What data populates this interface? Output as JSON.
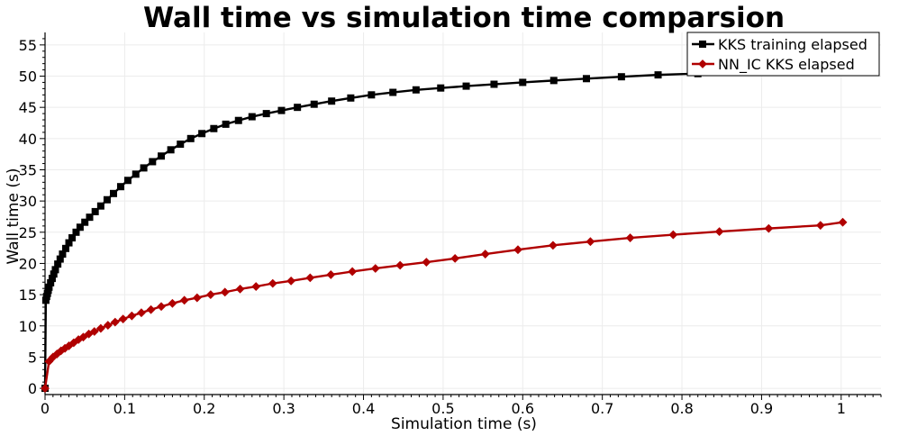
{
  "chart_data": {
    "type": "line",
    "title": "Wall time vs simulation time comparsion",
    "xlabel": "Simulation time (s)",
    "ylabel": "Wall time (s)",
    "xlim": [
      0,
      1.05
    ],
    "ylim": [
      -1,
      57
    ],
    "grid": true,
    "legend_position": "top-right",
    "x_ticks": [
      0,
      0.1,
      0.2,
      0.3,
      0.4,
      0.5,
      0.6,
      0.7,
      0.8,
      0.9,
      1
    ],
    "x_tick_labels": [
      "0",
      "0.1",
      "0.2",
      "0.3",
      "0.4",
      "0.5",
      "0.6",
      "0.7",
      "0.8",
      "0.9",
      "1"
    ],
    "y_ticks": [
      0,
      5,
      10,
      15,
      20,
      25,
      30,
      35,
      40,
      45,
      50,
      55
    ],
    "y_tick_labels": [
      "0",
      "5",
      "10",
      "15",
      "20",
      "25",
      "30",
      "35",
      "40",
      "45",
      "50",
      "55"
    ],
    "series": [
      {
        "name": "KKS training elapsed",
        "color": "#000000",
        "marker": "square",
        "x": [
          0,
          0.001,
          0.002,
          0.003,
          0.004,
          0.005,
          0.007,
          0.009,
          0.011,
          0.013,
          0.016,
          0.019,
          0.022,
          0.026,
          0.03,
          0.034,
          0.039,
          0.044,
          0.05,
          0.056,
          0.063,
          0.07,
          0.078,
          0.086,
          0.095,
          0.104,
          0.114,
          0.124,
          0.135,
          0.146,
          0.158,
          0.17,
          0.183,
          0.197,
          0.212,
          0.227,
          0.243,
          0.26,
          0.278,
          0.297,
          0.317,
          0.338,
          0.36,
          0.384,
          0.41,
          0.437,
          0.466,
          0.497,
          0.529,
          0.564,
          0.6,
          0.639,
          0.68,
          0.724,
          0.77,
          0.82,
          0.872,
          0.928,
          0.987
        ],
        "y": [
          0,
          14.1,
          14.7,
          15.2,
          15.7,
          16.2,
          16.9,
          17.6,
          18.3,
          19.0,
          19.9,
          20.7,
          21.5,
          22.4,
          23.3,
          24.1,
          25.0,
          25.8,
          26.6,
          27.4,
          28.3,
          29.2,
          30.2,
          31.2,
          32.3,
          33.3,
          34.3,
          35.3,
          36.3,
          37.2,
          38.2,
          39.1,
          40.0,
          40.8,
          41.6,
          42.3,
          42.9,
          43.5,
          44.0,
          44.5,
          45.0,
          45.5,
          46.0,
          46.5,
          47.0,
          47.4,
          47.8,
          48.1,
          48.4,
          48.7,
          49.0,
          49.3,
          49.6,
          49.9,
          50.2,
          50.4,
          50.6,
          50.8,
          51.0
        ]
      },
      {
        "name": "NN_IC KKS elapsed",
        "color": "#b00000",
        "marker": "diamond",
        "x": [
          0,
          0.005,
          0.01,
          0.015,
          0.02,
          0.025,
          0.03,
          0.036,
          0.042,
          0.048,
          0.055,
          0.062,
          0.07,
          0.079,
          0.088,
          0.098,
          0.109,
          0.121,
          0.133,
          0.146,
          0.16,
          0.175,
          0.191,
          0.208,
          0.226,
          0.245,
          0.265,
          0.286,
          0.309,
          0.333,
          0.359,
          0.386,
          0.415,
          0.446,
          0.479,
          0.515,
          0.553,
          0.594,
          0.638,
          0.685,
          0.735,
          0.789,
          0.847,
          0.909,
          0.974,
          1.002
        ],
        "y": [
          0,
          4.3,
          5.0,
          5.5,
          6.0,
          6.4,
          6.8,
          7.3,
          7.8,
          8.2,
          8.7,
          9.1,
          9.6,
          10.1,
          10.6,
          11.1,
          11.6,
          12.1,
          12.6,
          13.1,
          13.6,
          14.1,
          14.5,
          15.0,
          15.4,
          15.9,
          16.3,
          16.8,
          17.2,
          17.7,
          18.2,
          18.7,
          19.2,
          19.7,
          20.2,
          20.8,
          21.5,
          22.2,
          22.9,
          23.5,
          24.1,
          24.6,
          25.1,
          25.6,
          26.1,
          26.6
        ]
      }
    ]
  }
}
